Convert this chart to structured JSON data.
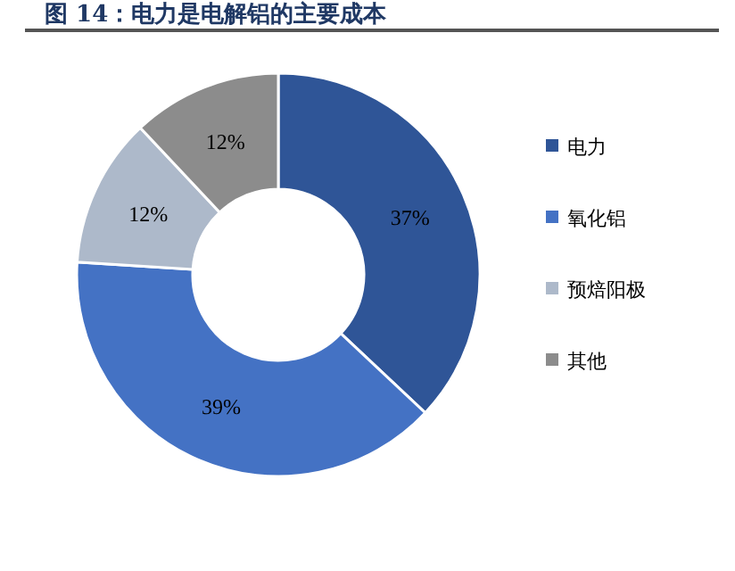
{
  "chart_data": {
    "type": "donut",
    "title": "图 14：电力是电解铝的主要成本",
    "categories": [
      "电力",
      "氧化铝",
      "预焙阳极",
      "其他"
    ],
    "values": [
      37,
      39,
      12,
      12
    ],
    "value_labels": [
      "37%",
      "39%",
      "12%",
      "12%"
    ],
    "colors": [
      "#2f5597",
      "#4472c4",
      "#adb9ca",
      "#8c8c8c"
    ],
    "legend": "right"
  }
}
